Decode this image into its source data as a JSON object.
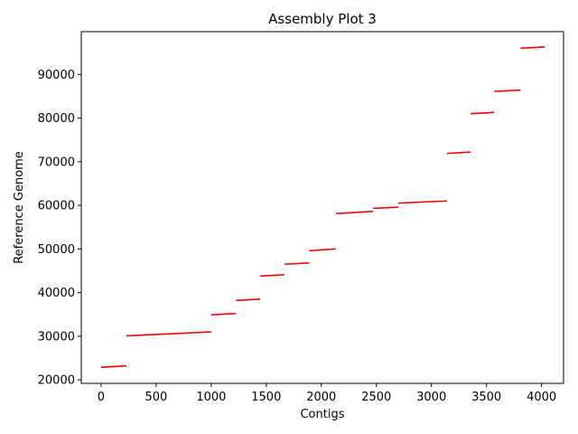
{
  "chart_data": {
    "type": "line",
    "title": "Assembly Plot 3",
    "xlabel": "Contigs",
    "ylabel": "Reference Genome",
    "xlim": [
      -180,
      4200
    ],
    "ylim": [
      19200,
      99800
    ],
    "xticks": [
      0,
      500,
      1000,
      1500,
      2000,
      2500,
      3000,
      3500,
      4000
    ],
    "xtick_labels": [
      "0",
      "500",
      "1000",
      "1500",
      "2000",
      "2500",
      "3000",
      "3500",
      "4000"
    ],
    "yticks": [
      20000,
      30000,
      40000,
      50000,
      60000,
      70000,
      80000,
      90000
    ],
    "ytick_labels": [
      "20000",
      "30000",
      "40000",
      "50000",
      "60000",
      "70000",
      "80000",
      "90000"
    ],
    "grid": false,
    "series_color": "#ff0000",
    "segments": [
      {
        "x": [
          0,
          230
        ],
        "y": [
          22900,
          23200
        ]
      },
      {
        "x": [
          230,
          1000
        ],
        "y": [
          30100,
          31000
        ]
      },
      {
        "x": [
          1000,
          1225
        ],
        "y": [
          34900,
          35200
        ]
      },
      {
        "x": [
          1225,
          1445
        ],
        "y": [
          38200,
          38500
        ]
      },
      {
        "x": [
          1445,
          1665
        ],
        "y": [
          43800,
          44100
        ]
      },
      {
        "x": [
          1665,
          1890
        ],
        "y": [
          46500,
          46800
        ]
      },
      {
        "x": [
          1890,
          2130
        ],
        "y": [
          49600,
          50000
        ]
      },
      {
        "x": [
          2130,
          2470
        ],
        "y": [
          58100,
          58600
        ]
      },
      {
        "x": [
          2470,
          2700
        ],
        "y": [
          59300,
          59600
        ]
      },
      {
        "x": [
          2700,
          3140
        ],
        "y": [
          60500,
          61000
        ]
      },
      {
        "x": [
          3140,
          3355
        ],
        "y": [
          71900,
          72200
        ]
      },
      {
        "x": [
          3355,
          3570
        ],
        "y": [
          81000,
          81300
        ]
      },
      {
        "x": [
          3570,
          3810
        ],
        "y": [
          86100,
          86400
        ]
      },
      {
        "x": [
          3810,
          4030
        ],
        "y": [
          96000,
          96300
        ]
      }
    ]
  }
}
